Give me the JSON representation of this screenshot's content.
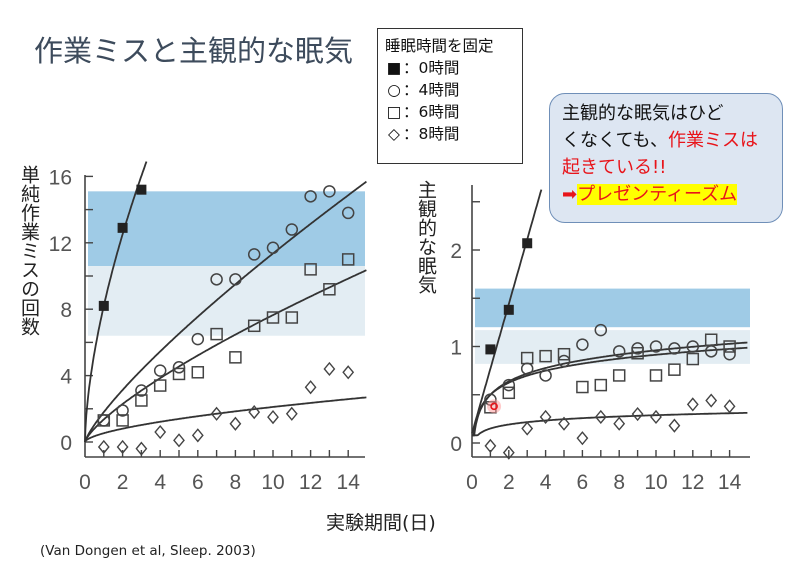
{
  "slide": {
    "title": "作業ミスと主観的な眠気",
    "legend": {
      "title": "睡眠時間を固定",
      "items": [
        {
          "symbol": "■",
          "label": "：0時間"
        },
        {
          "symbol": "○",
          "label": "：4時間"
        },
        {
          "symbol": "□",
          "label": "：6時間"
        },
        {
          "symbol": "◇",
          "label": "：8時間"
        }
      ]
    },
    "callout": {
      "line1": "主観的な眠気はひど",
      "line2a": "くなくても、",
      "line2b": "作業ミスは",
      "line3": "起きている!!",
      "arrow": "➡",
      "line4": "プレゼンティーズム"
    },
    "xlabel": "実験期間(日)",
    "citation": "(Van Dongen et al, Sleep. 2003)"
  },
  "colors": {
    "band_dark": "#9fcbe6",
    "band_light": "#e3edf3",
    "accent_red": "#e8141a",
    "highlight": "#ffff00",
    "callout_bg": "#dde6f2"
  },
  "chart_data": [
    {
      "type": "scatter",
      "title": "",
      "ylabel": "単純作業ミスの回数",
      "xlabel": "実験期間(日)",
      "xlim": [
        0,
        15
      ],
      "ylim": [
        -1,
        16
      ],
      "xticks": [
        0,
        2,
        4,
        6,
        8,
        10,
        12,
        14
      ],
      "yticks": [
        0,
        4,
        8,
        12,
        16
      ],
      "bands": [
        {
          "from": 10.6,
          "to": 15.1,
          "shade": "dark"
        },
        {
          "from": 6.4,
          "to": 10.6,
          "shade": "light"
        }
      ],
      "series": [
        {
          "name": "0時間",
          "marker": "filled-square",
          "x": [
            1,
            2,
            3
          ],
          "y": [
            8.2,
            12.9,
            15.2
          ]
        },
        {
          "name": "4時間",
          "marker": "circle",
          "x": [
            1,
            2,
            3,
            4,
            5,
            6,
            7,
            8,
            9,
            10,
            11,
            12,
            13,
            14
          ],
          "y": [
            1.3,
            1.9,
            3.1,
            4.3,
            4.5,
            6.2,
            9.8,
            9.8,
            11.3,
            11.7,
            12.8,
            14.8,
            15.1,
            13.8
          ]
        },
        {
          "name": "6時間",
          "marker": "square",
          "x": [
            1,
            2,
            3,
            4,
            5,
            6,
            7,
            8,
            9,
            10,
            11,
            12,
            13,
            14
          ],
          "y": [
            1.3,
            1.3,
            2.5,
            3.4,
            4.1,
            4.2,
            6.5,
            5.1,
            7.0,
            7.5,
            7.5,
            10.4,
            9.2,
            11.0
          ]
        },
        {
          "name": "8時間",
          "marker": "diamond",
          "x": [
            1,
            2,
            3,
            4,
            5,
            6,
            7,
            8,
            9,
            10,
            11,
            12,
            13,
            14
          ],
          "y": [
            -0.3,
            -0.3,
            -0.4,
            0.6,
            0.1,
            0.4,
            1.7,
            1.1,
            1.8,
            1.5,
            1.7,
            3.3,
            4.4,
            4.2
          ]
        }
      ]
    },
    {
      "type": "scatter",
      "title": "",
      "ylabel": "主観的な眠気",
      "xlabel": "実験期間(日)",
      "xlim": [
        0,
        15
      ],
      "ylim": [
        -0.15,
        2.6
      ],
      "xticks": [
        0,
        2,
        4,
        6,
        8,
        10,
        12,
        14
      ],
      "yticks": [
        0,
        1,
        2
      ],
      "bands": [
        {
          "from": 1.2,
          "to": 1.6,
          "shade": "dark"
        },
        {
          "from": 0.82,
          "to": 1.17,
          "shade": "light"
        }
      ],
      "series": [
        {
          "name": "0時間",
          "marker": "filled-square",
          "x": [
            1,
            2,
            3
          ],
          "y": [
            0.97,
            1.38,
            2.07
          ]
        },
        {
          "name": "4時間",
          "marker": "circle",
          "x": [
            1,
            2,
            3,
            4,
            5,
            6,
            7,
            8,
            9,
            10,
            11,
            12,
            13,
            14
          ],
          "y": [
            0.45,
            0.6,
            0.77,
            0.7,
            0.85,
            1.02,
            1.17,
            0.95,
            0.98,
            1.0,
            0.98,
            1.0,
            0.95,
            0.92
          ]
        },
        {
          "name": "6時間",
          "marker": "square",
          "x": [
            1,
            2,
            3,
            4,
            5,
            6,
            7,
            8,
            9,
            10,
            11,
            12,
            13,
            14
          ],
          "y": [
            0.37,
            0.52,
            0.88,
            0.9,
            0.92,
            0.58,
            0.6,
            0.7,
            0.93,
            0.7,
            0.76,
            0.87,
            1.07,
            1.0
          ]
        },
        {
          "name": "8時間",
          "marker": "diamond",
          "x": [
            1,
            2,
            3,
            4,
            5,
            6,
            7,
            8,
            9,
            10,
            11,
            12,
            13,
            14
          ],
          "y": [
            -0.03,
            -0.1,
            0.15,
            0.27,
            0.2,
            0.05,
            0.27,
            0.2,
            0.3,
            0.27,
            0.18,
            0.4,
            0.44,
            0.38
          ]
        }
      ]
    }
  ]
}
